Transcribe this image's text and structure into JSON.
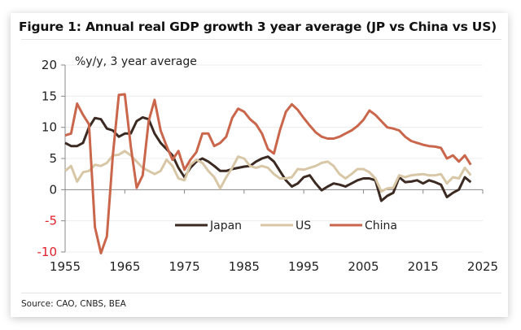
{
  "figure": {
    "title": "Figure 1: Annual real GDP growth 3 year average (JP vs China vs US)",
    "source": "Source: CAO, CNBS, BEA"
  },
  "chart_data": {
    "type": "line",
    "title": "Figure 1: Annual real GDP growth 3 year average (JP vs China vs US)",
    "ylabel": "%y/y, 3 year average",
    "xlabel": "",
    "xlim": [
      1955,
      2025
    ],
    "ylim": [
      -10,
      20
    ],
    "xticks": [
      1955,
      1965,
      1975,
      1985,
      1995,
      2005,
      2015,
      2025
    ],
    "yticks": [
      -10,
      -5,
      0,
      5,
      10,
      15,
      20
    ],
    "negative_tick_color": "#e0202a",
    "grid": true,
    "legend": "bottom-center",
    "x": [
      1955,
      1956,
      1957,
      1958,
      1959,
      1960,
      1961,
      1962,
      1963,
      1964,
      1965,
      1966,
      1967,
      1968,
      1969,
      1970,
      1971,
      1972,
      1973,
      1974,
      1975,
      1976,
      1977,
      1978,
      1979,
      1980,
      1981,
      1982,
      1983,
      1984,
      1985,
      1986,
      1987,
      1988,
      1989,
      1990,
      1991,
      1992,
      1993,
      1994,
      1995,
      1996,
      1997,
      1998,
      1999,
      2000,
      2001,
      2002,
      2003,
      2004,
      2005,
      2006,
      2007,
      2008,
      2009,
      2010,
      2011,
      2012,
      2013,
      2014,
      2015,
      2016,
      2017,
      2018,
      2019,
      2020,
      2021,
      2022,
      2023
    ],
    "series": [
      {
        "name": "Japan",
        "color": "#3b2a22",
        "values": [
          7.5,
          7.0,
          7.0,
          7.5,
          10.0,
          11.5,
          11.3,
          9.8,
          9.5,
          8.5,
          9.0,
          9.0,
          11.0,
          11.6,
          11.3,
          9.0,
          7.5,
          6.5,
          5.5,
          3.5,
          2.0,
          3.5,
          4.5,
          5.0,
          4.5,
          3.8,
          3.0,
          3.0,
          3.3,
          3.5,
          3.7,
          3.8,
          4.5,
          5.0,
          5.3,
          4.5,
          3.0,
          1.5,
          0.5,
          1.0,
          2.0,
          2.3,
          1.0,
          -0.1,
          0.5,
          1.0,
          0.8,
          0.5,
          1.0,
          1.5,
          1.8,
          1.8,
          1.5,
          -1.8,
          -1.0,
          -0.5,
          2.0,
          1.2,
          1.3,
          1.5,
          1.0,
          1.5,
          1.2,
          0.8,
          -1.2,
          -0.5,
          0.0,
          2.0,
          1.2
        ]
      },
      {
        "name": "US",
        "color": "#d8c7a6",
        "values": [
          3.0,
          3.8,
          1.3,
          2.8,
          3.0,
          4.0,
          3.8,
          4.3,
          5.5,
          5.6,
          6.2,
          5.5,
          4.5,
          3.5,
          3.0,
          2.5,
          3.0,
          4.8,
          3.8,
          1.8,
          1.5,
          4.0,
          4.8,
          4.3,
          3.0,
          2.0,
          0.2,
          2.0,
          3.5,
          5.3,
          5.0,
          3.8,
          3.5,
          3.8,
          3.5,
          2.5,
          1.8,
          1.8,
          2.0,
          3.3,
          3.2,
          3.5,
          3.8,
          4.3,
          4.5,
          3.8,
          2.5,
          1.8,
          2.5,
          3.3,
          3.3,
          2.8,
          1.8,
          -0.3,
          0.2,
          0.3,
          2.3,
          2.0,
          2.3,
          2.4,
          2.5,
          2.3,
          2.3,
          2.5,
          1.0,
          2.0,
          1.8,
          3.5,
          2.3
        ]
      },
      {
        "name": "China",
        "color": "#c9664b",
        "values": [
          8.7,
          9.0,
          13.8,
          12.0,
          10.5,
          -6.0,
          -10.2,
          -7.5,
          5.5,
          15.2,
          15.3,
          7.0,
          0.3,
          2.3,
          11.0,
          14.4,
          9.5,
          7.0,
          4.8,
          6.2,
          3.2,
          4.8,
          6.0,
          9.0,
          9.0,
          7.0,
          7.5,
          8.5,
          11.5,
          13.0,
          12.5,
          11.3,
          10.5,
          9.0,
          6.5,
          5.8,
          9.5,
          12.5,
          13.7,
          12.8,
          11.5,
          10.3,
          9.2,
          8.5,
          8.2,
          8.2,
          8.5,
          9.0,
          9.5,
          10.2,
          11.2,
          12.7,
          12.0,
          11.0,
          10.0,
          9.8,
          9.5,
          8.5,
          7.8,
          7.5,
          7.2,
          7.0,
          6.9,
          6.7,
          5.0,
          5.5,
          4.5,
          5.5,
          4.0
        ]
      }
    ]
  }
}
